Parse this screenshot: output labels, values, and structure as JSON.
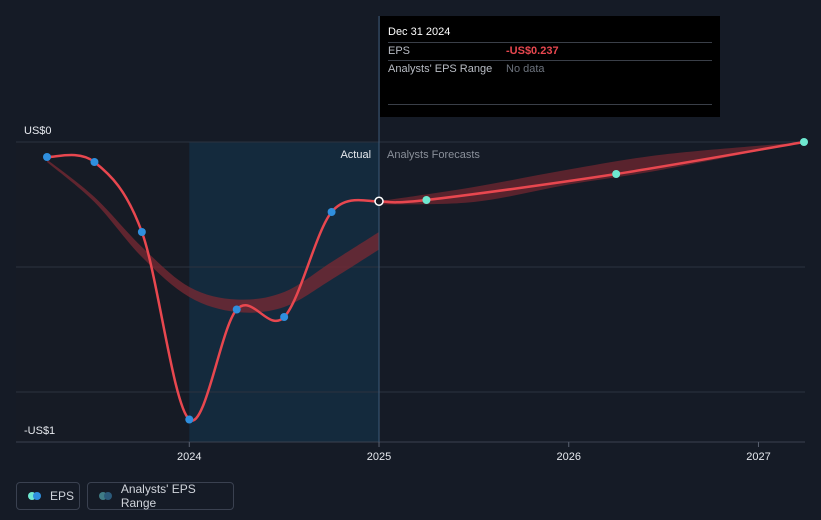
{
  "tooltip": {
    "date": "Dec 31 2024",
    "rows": [
      {
        "label": "EPS",
        "value": "-US$0.237"
      },
      {
        "label": "Analysts' EPS Range",
        "value": "No data"
      }
    ]
  },
  "colors": {
    "background": "#151b26",
    "eps_line": "#e8474f",
    "actual_point": "#2f8fde",
    "forecast_point": "#6ee8d0",
    "range_band": "#7a2a33",
    "highlight": "#142a3d"
  },
  "legend": [
    {
      "label": "EPS",
      "icon": "eps-swatch-icon"
    },
    {
      "label": "Analysts' EPS Range",
      "icon": "range-swatch-icon"
    }
  ],
  "chart_data": {
    "type": "line",
    "ylabel_top": "US$0",
    "ylabel_bottom": "-US$1",
    "ylim": [
      -1.2,
      0
    ],
    "xlim": [
      2023.2,
      2027.24
    ],
    "x_ticks": [
      {
        "value": 2024,
        "label": "2024"
      },
      {
        "value": 2025,
        "label": "2025"
      },
      {
        "value": 2026,
        "label": "2026"
      },
      {
        "value": 2027,
        "label": "2027"
      }
    ],
    "section_labels": {
      "actual": "Actual",
      "forecast": "Analysts Forecasts"
    },
    "divider_x": 2025.0,
    "highlight_from": 2024.0,
    "series": [
      {
        "name": "EPS (actual)",
        "points": [
          {
            "x": 2023.25,
            "y": -0.06
          },
          {
            "x": 2023.5,
            "y": -0.08
          },
          {
            "x": 2023.75,
            "y": -0.36
          },
          {
            "x": 2024.0,
            "y": -1.11
          },
          {
            "x": 2024.25,
            "y": -0.67
          },
          {
            "x": 2024.5,
            "y": -0.7
          },
          {
            "x": 2024.75,
            "y": -0.28
          },
          {
            "x": 2025.0,
            "y": -0.237
          }
        ]
      },
      {
        "name": "EPS (forecast)",
        "points": [
          {
            "x": 2025.0,
            "y": -0.237
          },
          {
            "x": 2025.25,
            "y": -0.232
          },
          {
            "x": 2026.25,
            "y": -0.128
          },
          {
            "x": 2027.24,
            "y": 0.0
          }
        ]
      }
    ],
    "range_band": {
      "upper": [
        {
          "x": 2023.25,
          "y": -0.07
        },
        {
          "x": 2023.5,
          "y": -0.22
        },
        {
          "x": 2023.75,
          "y": -0.42
        },
        {
          "x": 2024.0,
          "y": -0.58
        },
        {
          "x": 2024.25,
          "y": -0.63
        },
        {
          "x": 2024.5,
          "y": -0.6
        },
        {
          "x": 2024.75,
          "y": -0.48
        },
        {
          "x": 2025.0,
          "y": -0.36
        }
      ],
      "lower": [
        {
          "x": 2025.0,
          "y": -0.43
        },
        {
          "x": 2024.75,
          "y": -0.55
        },
        {
          "x": 2024.5,
          "y": -0.66
        },
        {
          "x": 2024.25,
          "y": -0.68
        },
        {
          "x": 2024.0,
          "y": -0.62
        },
        {
          "x": 2023.75,
          "y": -0.46
        },
        {
          "x": 2023.5,
          "y": -0.24
        },
        {
          "x": 2023.25,
          "y": -0.08
        }
      ],
      "forecast_upper": [
        {
          "x": 2025.0,
          "y": -0.237
        },
        {
          "x": 2025.5,
          "y": -0.18
        },
        {
          "x": 2026.0,
          "y": -0.11
        },
        {
          "x": 2026.5,
          "y": -0.05
        },
        {
          "x": 2027.24,
          "y": 0.0
        }
      ],
      "forecast_lower": [
        {
          "x": 2027.24,
          "y": 0.0
        },
        {
          "x": 2026.5,
          "y": -0.11
        },
        {
          "x": 2026.0,
          "y": -0.17
        },
        {
          "x": 2025.5,
          "y": -0.24
        },
        {
          "x": 2025.0,
          "y": -0.25
        }
      ]
    }
  }
}
